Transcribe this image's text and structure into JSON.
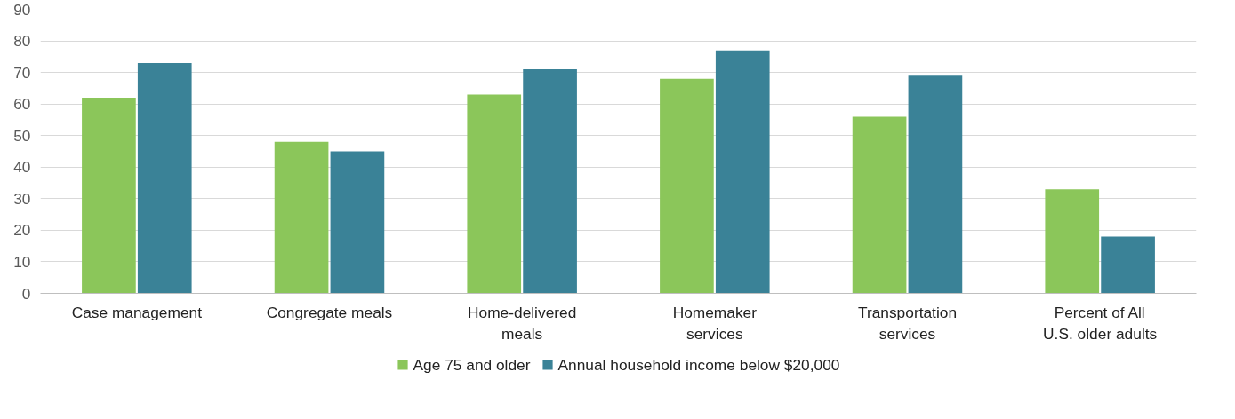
{
  "chart_data": {
    "type": "bar",
    "categories": [
      "Case management",
      "Congregate meals",
      "Home-delivered meals",
      "Homemaker services",
      "Transportation services",
      "Percent of All U.S. older adults"
    ],
    "series": [
      {
        "name": "Age 75 and older",
        "color": "#8bc65a",
        "values": [
          62,
          48,
          63,
          68,
          56,
          33
        ]
      },
      {
        "name": "Annual household income below $20,000",
        "color": "#3a8297",
        "values": [
          73,
          45,
          71,
          77,
          69,
          18
        ]
      }
    ],
    "ylim": [
      0,
      90
    ],
    "yticks": [
      0,
      10,
      20,
      30,
      40,
      50,
      60,
      70,
      80,
      90
    ],
    "grid": "y",
    "legend": "bottom"
  }
}
